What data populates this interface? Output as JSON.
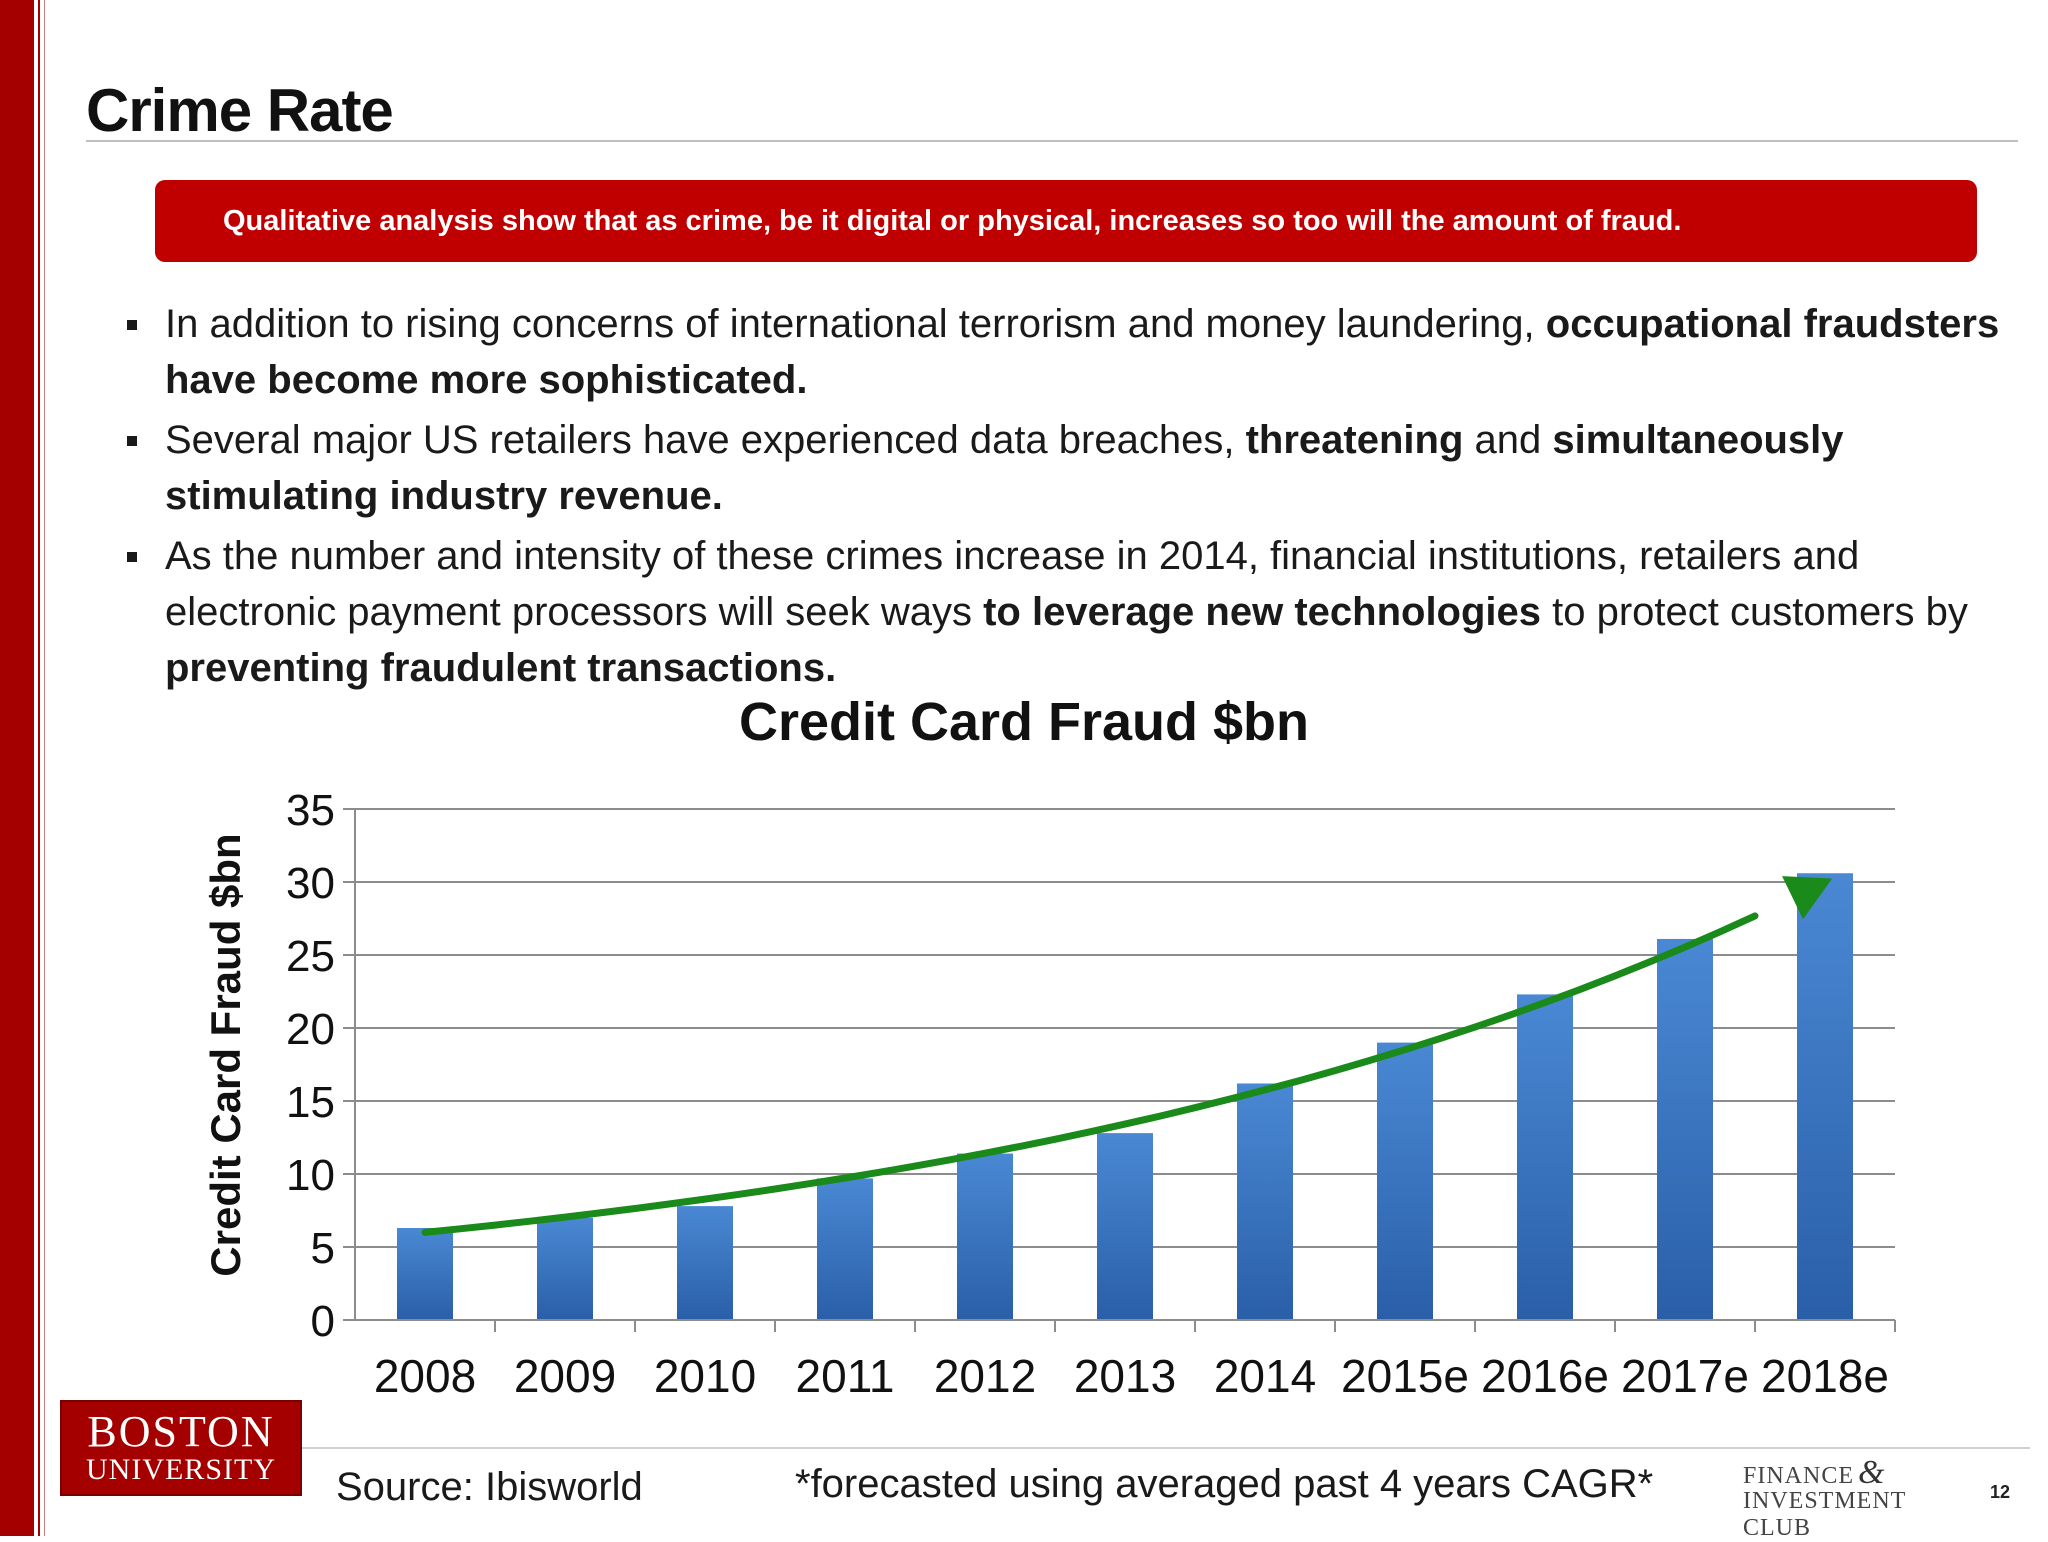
{
  "slide": {
    "title": "Crime Rate",
    "banner": "Qualitative analysis show that as crime, be it digital or physical, increases so too will the amount of fraud.",
    "bullets": [
      [
        {
          "t": "In addition to rising concerns of international terrorism and money laundering, ",
          "b": false
        },
        {
          "t": "occupational fraudsters have become more sophisticated.",
          "b": true
        }
      ],
      [
        {
          "t": "Several major US retailers have experienced data breaches, ",
          "b": false
        },
        {
          "t": "threatening",
          "b": true
        },
        {
          "t": " and ",
          "b": false
        },
        {
          "t": "simultaneously stimulating industry revenue.",
          "b": true
        }
      ],
      [
        {
          "t": "As the number and intensity of these crimes increase in 2014, financial institutions, retailers and electronic payment processors will seek ways ",
          "b": false
        },
        {
          "t": "to leverage new technologies",
          "b": true
        },
        {
          "t": " to protect customers by ",
          "b": false
        },
        {
          "t": "preventing fraudulent transactions.",
          "b": true
        }
      ]
    ],
    "source": "Source: Ibisworld",
    "footnote": "*forecasted using averaged past 4 years CAGR*",
    "logo_left": {
      "line1": "BOSTON",
      "line2": "UNIVERSITY"
    },
    "logo_right": {
      "line1": "FINANCE",
      "amp": "&",
      "line2": "INVESTMENT CLUB"
    },
    "page_number": "12",
    "colors": {
      "accent": "#c00000",
      "sidebar": "#a50000",
      "bar": "#3a78c4",
      "trend": "#1a8a1a"
    }
  },
  "chart_data": {
    "type": "bar",
    "title": "Credit Card Fraud $bn",
    "xlabel": "",
    "ylabel": "Credit Card Fraud $bn",
    "categories": [
      "2008",
      "2009",
      "2010",
      "2011",
      "2012",
      "2013",
      "2014",
      "2015e",
      "2016e",
      "2017e",
      "2018e"
    ],
    "values": [
      6.3,
      7.0,
      7.8,
      9.7,
      11.4,
      12.8,
      16.2,
      19.0,
      22.3,
      26.1,
      30.6
    ],
    "ylim": [
      0,
      35
    ],
    "yticks": [
      0,
      5,
      10,
      15,
      20,
      25,
      30,
      35
    ],
    "grid": true,
    "legend": false,
    "trend_arrow": {
      "color": "#1a8a1a",
      "from_value": 6.0,
      "to_value": 30.0
    }
  }
}
